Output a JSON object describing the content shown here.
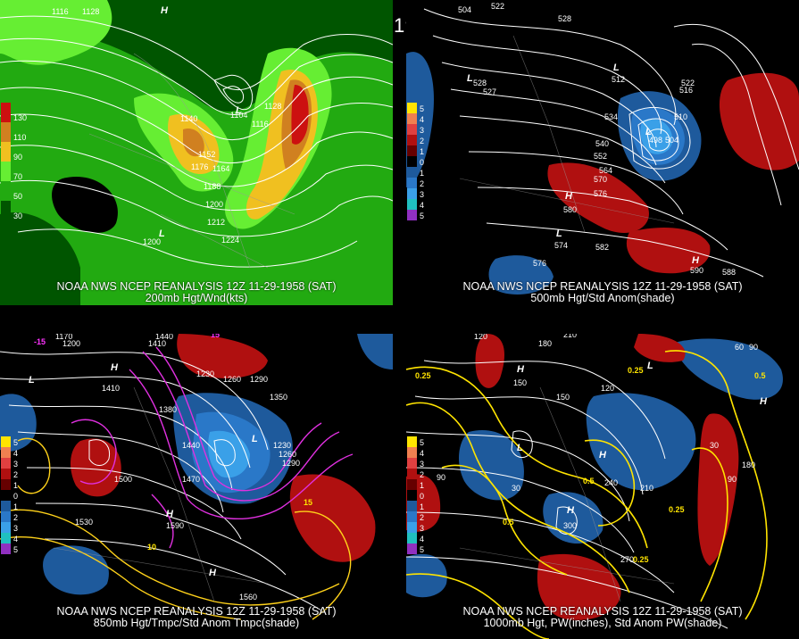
{
  "main_title": "12Z 11-29-1958 (SAT)",
  "panels": [
    {
      "id": "top-left",
      "caption_line1": "NOAA NWS NCEP REANALYSIS 12Z 11-29-1958 (SAT)",
      "caption_line2": "200mb Hgt/Wnd(kts)",
      "legend_labels": [
        "130",
        "110",
        "90",
        "70",
        "50",
        "30"
      ],
      "contour_labels": [
        "1116",
        "1128",
        "1140",
        "1152",
        "1164",
        "1176",
        "1188",
        "1200",
        "1212",
        "1224",
        "1116",
        "1104",
        "1128",
        "1200"
      ],
      "highs_lows": [
        "H",
        "L",
        "L"
      ],
      "colors": {
        "wind_low": "#005500",
        "wind_mid": "#22aa11",
        "wind_high": "#66ee33",
        "jet_yellow": "#f0c020",
        "jet_orange": "#d08020",
        "jet_red": "#cc1010"
      }
    },
    {
      "id": "top-right",
      "caption_line1": "NOAA NWS NCEP REANALYSIS 12Z 11-29-1958 (SAT)",
      "caption_line2": "500mb Hgt/Std Anom(shade)",
      "legend_labels": [
        "5",
        "4",
        "3",
        "2",
        "1",
        "0",
        "1",
        "2",
        "3",
        "4",
        "5"
      ],
      "contour_labels": [
        "504",
        "522",
        "528",
        "528",
        "527",
        "534",
        "540",
        "552",
        "564",
        "570",
        "576",
        "580",
        "582",
        "576",
        "574",
        "510",
        "516",
        "522",
        "588",
        "590",
        "512",
        "498",
        "504"
      ],
      "highs_lows": [
        "L",
        "L",
        "H",
        "L",
        "H",
        "L"
      ],
      "colors": {
        "pos_anom": "#b01010",
        "neg_anom": "#1e5a9c",
        "neg_strong": "#3aa0e8"
      }
    },
    {
      "id": "bottom-left",
      "caption_line1": "NOAA NWS NCEP REANALYSIS 12Z 11-29-1958 (SAT)",
      "caption_line2": "850mb Hgt/Tmpc/Std Anom Tmpc(shade)",
      "legend_labels": [
        "5",
        "4",
        "3",
        "2",
        "1",
        "0",
        "1",
        "2",
        "3",
        "4",
        "5"
      ],
      "contour_labels": [
        "1170",
        "1200",
        "1440",
        "1410",
        "1230",
        "1260",
        "1290",
        "1350",
        "1380",
        "1410",
        "1440",
        "1470",
        "1500",
        "1530",
        "1590",
        "1560",
        "1230",
        "1260",
        "1290",
        "15",
        "10",
        "15",
        "-15"
      ],
      "highs_lows": [
        "H",
        "L",
        "L",
        "H",
        "H"
      ],
      "colors": {
        "isotherm_warm": "#ffd21a",
        "isotherm_cold": "#e030e0",
        "pos_anom": "#b01010",
        "neg_anom": "#1e5a9c"
      }
    },
    {
      "id": "bottom-right",
      "caption_line1": "NOAA NWS NCEP REANALYSIS 12Z 11-29-1958 (SAT)",
      "caption_line2": "1000mb Hgt, PW(inches), Std Anom PW(shade)",
      "legend_labels": [
        "5",
        "4",
        "3",
        "2",
        "1",
        "0",
        "1",
        "2",
        "3",
        "4",
        "5"
      ],
      "contour_labels": [
        "120",
        "180",
        "210",
        "150",
        "120",
        "150",
        "90",
        "30",
        "240",
        "210",
        "300",
        "270",
        "180",
        "90",
        "0.25",
        "0.5",
        "0.25",
        "0.5",
        "0.25",
        "0.5",
        "0.25",
        "30",
        "60",
        "90"
      ],
      "highs_lows": [
        "H",
        "L",
        "H",
        "H",
        "L",
        "H"
      ],
      "colors": {
        "pw_contour": "#ffe400",
        "pos_anom": "#b01010",
        "neg_anom": "#1e5a9c"
      }
    }
  ]
}
